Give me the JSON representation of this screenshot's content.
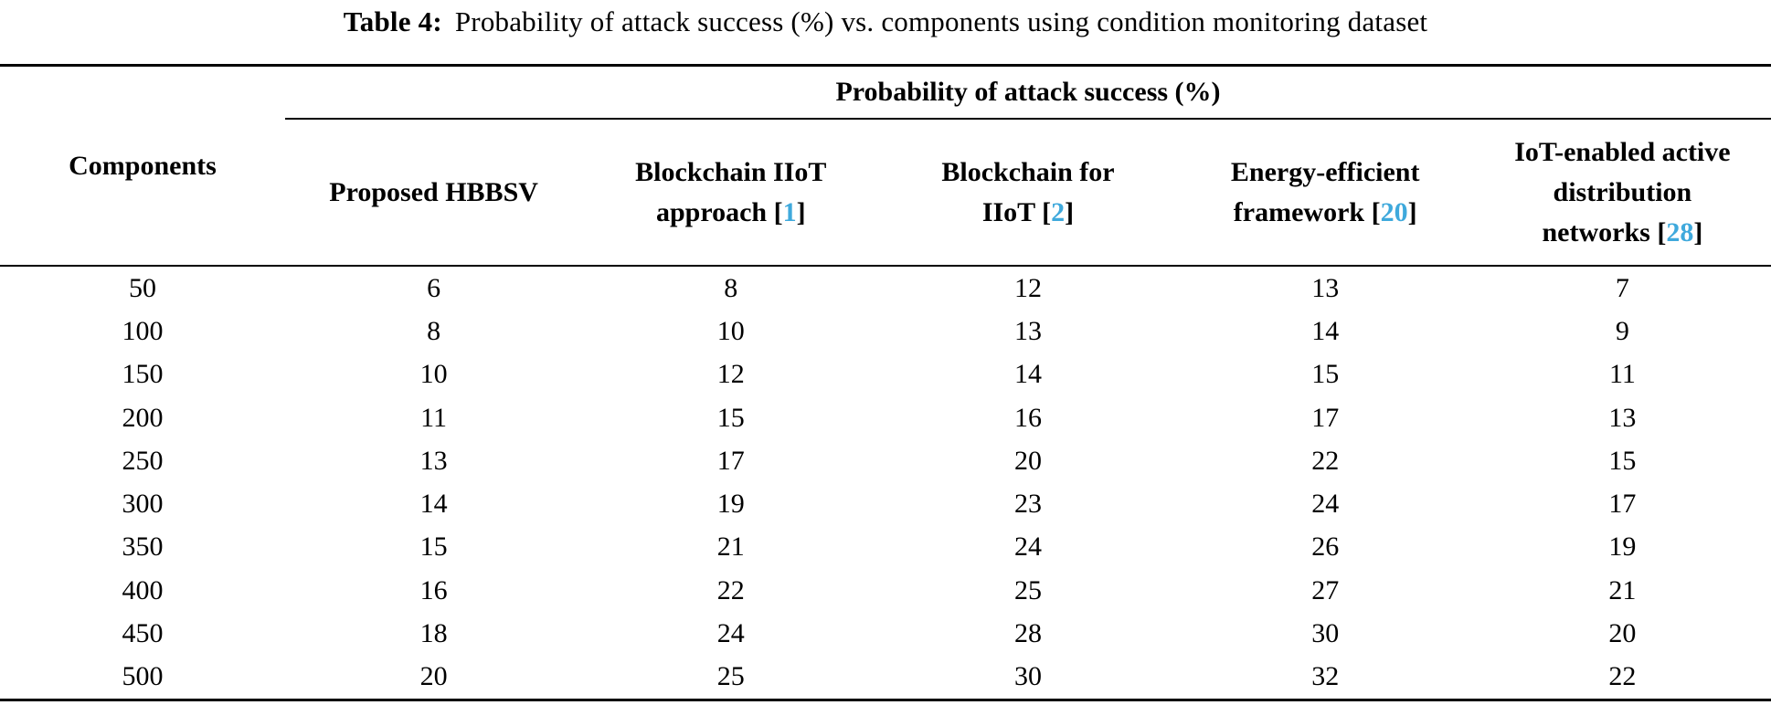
{
  "caption": {
    "label": "Table 4:",
    "text": "Probability of attack success (%) vs. components using condition monitoring dataset"
  },
  "colors": {
    "citation_link": "#3FA9DC",
    "text": "#000000",
    "background": "#FFFFFF"
  },
  "table": {
    "row_header": "Components",
    "span_header": "Probability of attack success (%)",
    "method_columns": [
      {
        "lines": [
          "Proposed HBBSV"
        ],
        "citation": null
      },
      {
        "lines": [
          "Blockchain IIoT",
          "approach"
        ],
        "citation": "1"
      },
      {
        "lines": [
          "Blockchain for",
          "IIoT"
        ],
        "citation": "2"
      },
      {
        "lines": [
          "Energy-efficient",
          "framework"
        ],
        "citation": "20"
      },
      {
        "lines": [
          "IoT-enabled active",
          "distribution",
          "networks"
        ],
        "citation": "28"
      }
    ],
    "rows": [
      {
        "components": "50",
        "values": [
          "6",
          "8",
          "12",
          "13",
          "7"
        ]
      },
      {
        "components": "100",
        "values": [
          "8",
          "10",
          "13",
          "14",
          "9"
        ]
      },
      {
        "components": "150",
        "values": [
          "10",
          "12",
          "14",
          "15",
          "11"
        ]
      },
      {
        "components": "200",
        "values": [
          "11",
          "15",
          "16",
          "17",
          "13"
        ]
      },
      {
        "components": "250",
        "values": [
          "13",
          "17",
          "20",
          "22",
          "15"
        ]
      },
      {
        "components": "300",
        "values": [
          "14",
          "19",
          "23",
          "24",
          "17"
        ]
      },
      {
        "components": "350",
        "values": [
          "15",
          "21",
          "24",
          "26",
          "19"
        ]
      },
      {
        "components": "400",
        "values": [
          "16",
          "22",
          "25",
          "27",
          "21"
        ]
      },
      {
        "components": "450",
        "values": [
          "18",
          "24",
          "28",
          "30",
          "20"
        ]
      },
      {
        "components": "500",
        "values": [
          "20",
          "25",
          "30",
          "32",
          "22"
        ]
      }
    ]
  }
}
